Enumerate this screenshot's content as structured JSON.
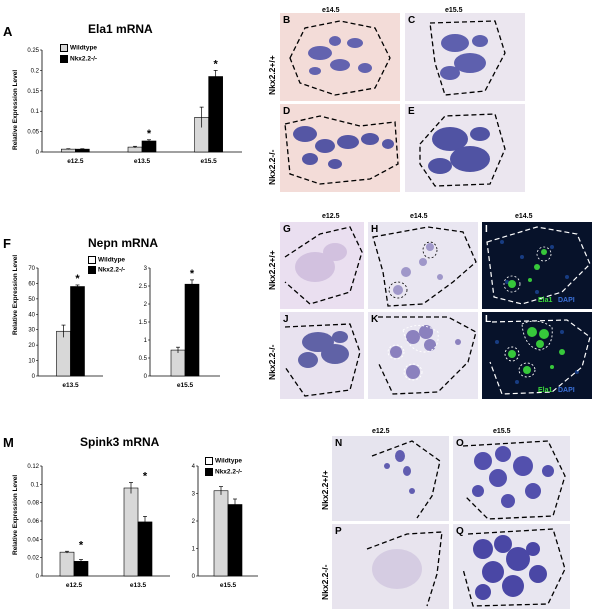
{
  "panels": {
    "A": "A",
    "F": "F",
    "M": "M",
    "B": "B",
    "C": "C",
    "D": "D",
    "E": "E",
    "G": "G",
    "H": "H",
    "I": "I",
    "J": "J",
    "K": "K",
    "L": "L",
    "N": "N",
    "O": "O",
    "P": "P",
    "Q": "Q"
  },
  "genotypes": {
    "wt": "Nkx2.2+/+",
    "ko": "Nkx2.2-/-"
  },
  "stages": {
    "e12": "e12.5",
    "e14": "e14.5",
    "e15": "e15.5"
  },
  "ihc": {
    "ela1": "Ela1",
    "dapi": "DAPI"
  },
  "colors": {
    "wildtype": "#d8d8d8",
    "knockout": "#000000",
    "ela1": "#3ddc3d",
    "dapi": "#3a6fd8"
  },
  "chart_data": [
    {
      "id": "ela1",
      "type": "bar",
      "title": "Ela1 mRNA",
      "ylabel": "Relative Expression Level",
      "categories": [
        "e12.5",
        "e13.5",
        "e15.5"
      ],
      "series": [
        {
          "name": "Wildtype",
          "values": [
            0.007,
            0.012,
            0.085
          ],
          "errors": [
            0.001,
            0.002,
            0.025
          ]
        },
        {
          "name": "Nkx2.2-/-",
          "values": [
            0.007,
            0.027,
            0.185
          ],
          "errors": [
            0.001,
            0.003,
            0.015
          ]
        }
      ],
      "ylim": [
        0,
        0.25
      ],
      "yticks": [
        "0",
        "0.05",
        "0.1",
        "0.15",
        "0.2",
        "0.25"
      ],
      "significant": [
        false,
        true,
        true
      ],
      "mark": "*"
    },
    {
      "id": "nepn13",
      "type": "bar",
      "title": "Nepn mRNA",
      "ylabel": "Relative Expression Level",
      "categories": [
        "e13.5"
      ],
      "series": [
        {
          "name": "Wildtype",
          "values": [
            29
          ],
          "errors": [
            4
          ]
        },
        {
          "name": "Nkx2.2-/-",
          "values": [
            58
          ],
          "errors": [
            1
          ]
        }
      ],
      "ylim": [
        0,
        70
      ],
      "yticks": [
        "0",
        "10",
        "20",
        "30",
        "40",
        "50",
        "60",
        "70"
      ],
      "significant": [
        true
      ],
      "mark": "*"
    },
    {
      "id": "nepn15",
      "type": "bar",
      "categories": [
        "e15.5"
      ],
      "series": [
        {
          "name": "Wildtype",
          "values": [
            0.72
          ],
          "errors": [
            0.08
          ]
        },
        {
          "name": "Nkx2.2-/-",
          "values": [
            2.55
          ],
          "errors": [
            0.12
          ]
        }
      ],
      "ylim": [
        0,
        3
      ],
      "yticks": [
        "0",
        "0.5",
        "1",
        "1.5",
        "2",
        "2.5",
        "3"
      ],
      "significant": [
        true
      ],
      "mark": "*"
    },
    {
      "id": "spink1",
      "type": "bar",
      "title": "Spink3 mRNA",
      "ylabel": "Relative Expression Level",
      "categories": [
        "e12.5",
        "e13.5"
      ],
      "series": [
        {
          "name": "Wildtype",
          "values": [
            0.026,
            0.096
          ],
          "errors": [
            0.001,
            0.006
          ]
        },
        {
          "name": "Nkx2.2-/-",
          "values": [
            0.016,
            0.059
          ],
          "errors": [
            0.002,
            0.006
          ]
        }
      ],
      "ylim": [
        0,
        0.12
      ],
      "yticks": [
        "0",
        "0.02",
        "0.04",
        "0.06",
        "0.08",
        "0.1",
        "0.12"
      ],
      "significant": [
        true,
        true
      ],
      "mark": "*"
    },
    {
      "id": "spink2",
      "type": "bar",
      "categories": [
        "e15.5"
      ],
      "series": [
        {
          "name": "Wildtype",
          "values": [
            3.1
          ],
          "errors": [
            0.15
          ]
        },
        {
          "name": "Nkx2.2-/-",
          "values": [
            2.6
          ],
          "errors": [
            0.2
          ]
        }
      ],
      "ylim": [
        0,
        4
      ],
      "yticks": [
        "0",
        "1",
        "2",
        "3",
        "4"
      ],
      "significant": [
        false
      ],
      "mark": "*"
    }
  ]
}
